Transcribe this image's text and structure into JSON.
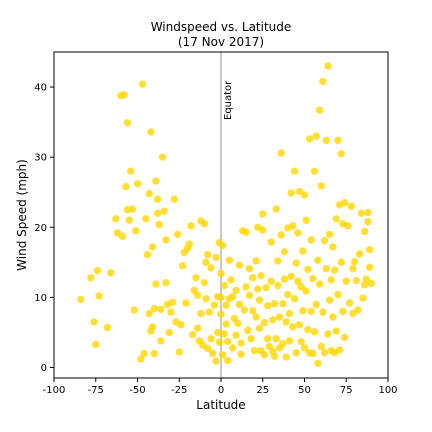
{
  "chart_data": {
    "type": "scatter",
    "title_line1": "Windspeed vs. Latitude",
    "title_line2": "(17 Nov 2017)",
    "xlabel": "Latitude",
    "ylabel": "Wind Speed (mph)",
    "xlim": [
      -100,
      100
    ],
    "ylim": [
      -1.5,
      45
    ],
    "xticks": [
      -100,
      -75,
      -50,
      -25,
      0,
      25,
      50,
      75,
      100
    ],
    "yticks": [
      0,
      10,
      20,
      30,
      40
    ],
    "grid": false,
    "point_color": "#FFD700",
    "annotation": {
      "text": "Equator",
      "x": 0
    },
    "series": [
      {
        "points": [
          [
            -84,
            9.7
          ],
          [
            -78,
            12.8
          ],
          [
            -76,
            6.5
          ],
          [
            -75,
            3.3
          ],
          [
            -74,
            13.8
          ],
          [
            -73,
            10.2
          ],
          [
            -68,
            5.7
          ],
          [
            -66,
            13.5
          ],
          [
            -63,
            21.2
          ],
          [
            -62,
            19.2
          ],
          [
            -60,
            38.8
          ],
          [
            -59,
            18.7
          ],
          [
            -58,
            38.9
          ],
          [
            -57,
            25.8
          ],
          [
            -56,
            34.9
          ],
          [
            -56,
            22.5
          ],
          [
            -55,
            21.0
          ],
          [
            -54,
            28.0
          ],
          [
            -53,
            22.6
          ],
          [
            -52,
            8.2
          ],
          [
            -51,
            19.5
          ],
          [
            -50,
            26.2
          ],
          [
            -48,
            1.2
          ],
          [
            -47,
            40.4
          ],
          [
            -46,
            2.0
          ],
          [
            -45,
            21.2
          ],
          [
            -44,
            16.1
          ],
          [
            -43,
            7.7
          ],
          [
            -43,
            24.8
          ],
          [
            -42,
            33.6
          ],
          [
            -42,
            5.2
          ],
          [
            -41,
            17.2
          ],
          [
            -41,
            5.8
          ],
          [
            -40,
            2.0
          ],
          [
            -40,
            8.4
          ],
          [
            -39,
            11.9
          ],
          [
            -39,
            26.6
          ],
          [
            -38,
            24.0
          ],
          [
            -38,
            22.0
          ],
          [
            -37,
            20.4
          ],
          [
            -36,
            8.3
          ],
          [
            -36,
            3.8
          ],
          [
            -35,
            30.0
          ],
          [
            -34,
            22.3
          ],
          [
            -33,
            12.1
          ],
          [
            -33,
            18.2
          ],
          [
            -32,
            9.0
          ],
          [
            -31,
            5.0
          ],
          [
            -30,
            7.9
          ],
          [
            -29,
            9.3
          ],
          [
            -28,
            24.0
          ],
          [
            -27,
            6.5
          ],
          [
            -26,
            19.0
          ],
          [
            -25,
            2.2
          ],
          [
            -24,
            6.1
          ],
          [
            -23,
            14.5
          ],
          [
            -22,
            16.4
          ],
          [
            -21,
            9.2
          ],
          [
            -20,
            17.0
          ],
          [
            -19,
            17.6
          ],
          [
            -18,
            20.2
          ],
          [
            -17,
            4.7
          ],
          [
            -16,
            11.0
          ],
          [
            -15,
            12.8
          ],
          [
            -14,
            10.3
          ],
          [
            -14,
            5.6
          ],
          [
            -13,
            3.8
          ],
          [
            -12,
            20.9
          ],
          [
            -12,
            7.7
          ],
          [
            -11,
            3.2
          ],
          [
            -10,
            20.5
          ],
          [
            -10,
            12.1
          ],
          [
            -9,
            15.0
          ],
          [
            -9,
            9.8
          ],
          [
            -8,
            2.7
          ],
          [
            -8,
            16.1
          ],
          [
            -7,
            7.9
          ],
          [
            -6,
            14.2
          ],
          [
            -6,
            4.1
          ],
          [
            -5,
            2.0
          ],
          [
            -4,
            8.9
          ],
          [
            -3,
            0.9
          ],
          [
            -3,
            15.7
          ],
          [
            -2,
            10.1
          ],
          [
            -2,
            5.0
          ],
          [
            -1,
            17.8
          ],
          [
            -1,
            3.6
          ],
          [
            0,
            10.0
          ],
          [
            0,
            7.6
          ],
          [
            0,
            13.4
          ],
          [
            1,
            17.4
          ],
          [
            1,
            1.8
          ],
          [
            2,
            4.8
          ],
          [
            2,
            11.7
          ],
          [
            3,
            8.9
          ],
          [
            3,
            6.2
          ],
          [
            4,
            1.0
          ],
          [
            4,
            3.7
          ],
          [
            5,
            15.3
          ],
          [
            5,
            9.8
          ],
          [
            6,
            12.5
          ],
          [
            7,
            2.8
          ],
          [
            7,
            10.1
          ],
          [
            8,
            7.0
          ],
          [
            9,
            11.0
          ],
          [
            9,
            4.6
          ],
          [
            10,
            6.3
          ],
          [
            11,
            14.6
          ],
          [
            11,
            9.0
          ],
          [
            12,
            3.5
          ],
          [
            12,
            1.9
          ],
          [
            13,
            19.5
          ],
          [
            14,
            8.2
          ],
          [
            15,
            11.5
          ],
          [
            15,
            19.3
          ],
          [
            16,
            5.3
          ],
          [
            17,
            10.3
          ],
          [
            17,
            14.1
          ],
          [
            18,
            4.1
          ],
          [
            19,
            12.8
          ],
          [
            19,
            8.1
          ],
          [
            20,
            2.4
          ],
          [
            21,
            7.2
          ],
          [
            21,
            15.2
          ],
          [
            22,
            20.0
          ],
          [
            22,
            11.2
          ],
          [
            23,
            5.6
          ],
          [
            23,
            9.6
          ],
          [
            24,
            13.1
          ],
          [
            24,
            2.4
          ],
          [
            25,
            21.9
          ],
          [
            25,
            19.6
          ],
          [
            26,
            6.4
          ],
          [
            26,
            1.8
          ],
          [
            27,
            11.4
          ],
          [
            28,
            4.1
          ],
          [
            28,
            8.8
          ],
          [
            29,
            3.0
          ],
          [
            30,
            17.9
          ],
          [
            30,
            12.3
          ],
          [
            31,
            2.3
          ],
          [
            31,
            6.8
          ],
          [
            32,
            9.1
          ],
          [
            32,
            1.6
          ],
          [
            33,
            22.6
          ],
          [
            33,
            4.1
          ],
          [
            34,
            15.2
          ],
          [
            34,
            11.7
          ],
          [
            35,
            7.2
          ],
          [
            35,
            2.8
          ],
          [
            36,
            30.6
          ],
          [
            36,
            18.9
          ],
          [
            37,
            9.1
          ],
          [
            37,
            3.4
          ],
          [
            38,
            16.5
          ],
          [
            38,
            12.6
          ],
          [
            39,
            6.5
          ],
          [
            39,
            1.5
          ],
          [
            40,
            19.9
          ],
          [
            40,
            10.4
          ],
          [
            41,
            3.8
          ],
          [
            41,
            7.7
          ],
          [
            42,
            24.9
          ],
          [
            42,
            13.0
          ],
          [
            43,
            5.8
          ],
          [
            43,
            20.2
          ],
          [
            44,
            28.0
          ],
          [
            44,
            9.8
          ],
          [
            45,
            14.9
          ],
          [
            45,
            2.1
          ],
          [
            46,
            19.2
          ],
          [
            46,
            12.3
          ],
          [
            47,
            6.1
          ],
          [
            47,
            25.1
          ],
          [
            48,
            3.7
          ],
          [
            48,
            11.5
          ],
          [
            49,
            16.6
          ],
          [
            49,
            8.1
          ],
          [
            50,
            24.6
          ],
          [
            50,
            2.8
          ],
          [
            51,
            21.0
          ],
          [
            51,
            10.9
          ],
          [
            52,
            5.4
          ],
          [
            52,
            14.0
          ],
          [
            53,
            32.6
          ],
          [
            53,
            2.1
          ],
          [
            54,
            18.2
          ],
          [
            54,
            8.0
          ],
          [
            55,
            12.7
          ],
          [
            55,
            2.0
          ],
          [
            56,
            28.0
          ],
          [
            56,
            5.1
          ],
          [
            57,
            33.0
          ],
          [
            57,
            9.0
          ],
          [
            58,
            15.3
          ],
          [
            58,
            0.6
          ],
          [
            59,
            36.7
          ],
          [
            59,
            11.9
          ],
          [
            60,
            25.9
          ],
          [
            60,
            3.0
          ],
          [
            61,
            40.8
          ],
          [
            61,
            7.9
          ],
          [
            62,
            18.1
          ],
          [
            62,
            2.1
          ],
          [
            63,
            32.4
          ],
          [
            63,
            14.1
          ],
          [
            64,
            43.0
          ],
          [
            64,
            4.8
          ],
          [
            65,
            19.0
          ],
          [
            65,
            9.6
          ],
          [
            66,
            2.4
          ],
          [
            66,
            12.5
          ],
          [
            67,
            7.2
          ],
          [
            67,
            17.2
          ],
          [
            68,
            2.1
          ],
          [
            68,
            13.9
          ],
          [
            69,
            5.2
          ],
          [
            69,
            21.2
          ],
          [
            70,
            32.4
          ],
          [
            70,
            10.4
          ],
          [
            71,
            23.2
          ],
          [
            71,
            2.5
          ],
          [
            72,
            30.5
          ],
          [
            72,
            15.0
          ],
          [
            73,
            8.0
          ],
          [
            73,
            20.5
          ],
          [
            74,
            23.5
          ],
          [
            74,
            4.3
          ],
          [
            75,
            12.3
          ],
          [
            76,
            20.2
          ],
          [
            77,
            9.2
          ],
          [
            78,
            23.0
          ],
          [
            79,
            14.1
          ],
          [
            79,
            7.7
          ],
          [
            80,
            15.1
          ],
          [
            81,
            12.4
          ],
          [
            82,
            8.2
          ],
          [
            83,
            16.2
          ],
          [
            84,
            22.0
          ],
          [
            85,
            9.9
          ],
          [
            86,
            19.4
          ],
          [
            86,
            11.8
          ],
          [
            87,
            12.6
          ],
          [
            88,
            20.8
          ],
          [
            88,
            22.1
          ],
          [
            89,
            16.8
          ],
          [
            89,
            14.3
          ],
          [
            90,
            12.0
          ]
        ]
      }
    ]
  }
}
